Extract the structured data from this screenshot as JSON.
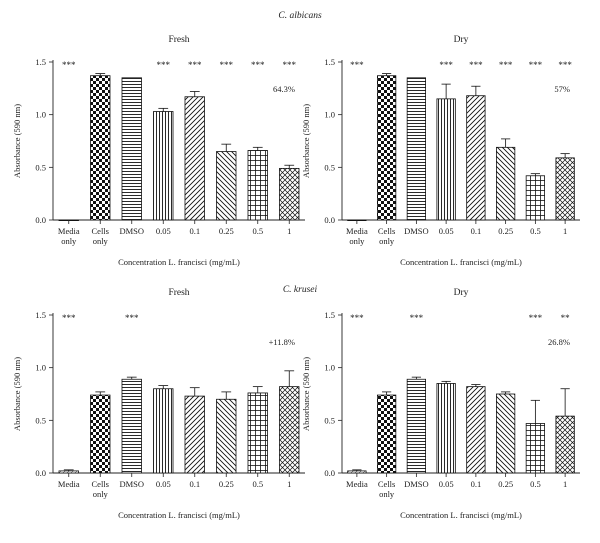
{
  "figure": {
    "section_titles": [
      "C. albicans",
      "C. krusei"
    ]
  },
  "chart_data": [
    {
      "type": "bar",
      "organism": "C. albicans",
      "title": "Fresh",
      "ylabel": "Absorbance (590 nm)",
      "xlabel": "Concentration L. francisci (mg/mL)",
      "categories": [
        "Media only",
        "Cells only",
        "DMSO",
        "0.05",
        "0.1",
        "0.25",
        "0.5",
        "1"
      ],
      "values": [
        0.0,
        1.37,
        1.35,
        1.03,
        1.17,
        0.65,
        0.66,
        0.49
      ],
      "errors": [
        0.0,
        0.02,
        0.0,
        0.03,
        0.05,
        0.07,
        0.03,
        0.03
      ],
      "significance": [
        "***",
        "",
        "",
        "***",
        "***",
        "***",
        "***",
        "***"
      ],
      "annotation": "64.3%",
      "ylim": [
        0,
        1.5
      ],
      "yticks": [
        "0.0",
        "0.5",
        "1.0",
        "1.5"
      ],
      "patterns": [
        "hatch-light",
        "checker",
        "hlines",
        "vlines",
        "diag-right",
        "diag-left",
        "grid",
        "crosshatch"
      ]
    },
    {
      "type": "bar",
      "organism": "C. albicans",
      "title": "Dry",
      "ylabel": "Absorbance (590 nm)",
      "xlabel": "Concentration L. francisci (mg/mL)",
      "categories": [
        "Media only",
        "Cells only",
        "DMSO",
        "0.05",
        "0.1",
        "0.25",
        "0.5",
        "1"
      ],
      "values": [
        0.0,
        1.37,
        1.35,
        1.15,
        1.18,
        0.69,
        0.42,
        0.59
      ],
      "errors": [
        0.0,
        0.02,
        0.0,
        0.14,
        0.09,
        0.08,
        0.02,
        0.04
      ],
      "significance": [
        "***",
        "",
        "",
        "***",
        "***",
        "***",
        "***",
        "***"
      ],
      "annotation": "57%",
      "ylim": [
        0,
        1.5
      ],
      "yticks": [
        "0.0",
        "0.5",
        "1.0",
        "1.5"
      ],
      "patterns": [
        "hatch-light",
        "checker",
        "hlines",
        "vlines",
        "diag-right",
        "diag-left",
        "grid",
        "crosshatch"
      ]
    },
    {
      "type": "bar",
      "organism": "C. krusei",
      "title": "Fresh",
      "ylabel": "Absorbance (590 nm)",
      "xlabel": "Concentration L. francisci (mg/mL)",
      "categories": [
        "Media",
        "Cells only",
        "DMSO",
        "0.05",
        "0.1",
        "0.25",
        "0.5",
        "1"
      ],
      "values": [
        0.02,
        0.74,
        0.89,
        0.8,
        0.73,
        0.7,
        0.76,
        0.82
      ],
      "errors": [
        0.01,
        0.03,
        0.02,
        0.03,
        0.08,
        0.07,
        0.06,
        0.15
      ],
      "significance": [
        "***",
        "",
        "***",
        "",
        "",
        "",
        "",
        ""
      ],
      "annotation": "+11.8%",
      "ylim": [
        0,
        1.5
      ],
      "yticks": [
        "0.0",
        "0.5",
        "1.0",
        "1.5"
      ],
      "patterns": [
        "hatch-light",
        "checker",
        "hlines",
        "vlines",
        "diag-right",
        "diag-left",
        "grid",
        "crosshatch"
      ]
    },
    {
      "type": "bar",
      "organism": "C. krusei",
      "title": "Dry",
      "ylabel": "Absorbance (590 nm)",
      "xlabel": "Concentration L. francisci (mg/mL)",
      "categories": [
        "Media",
        "Cells only",
        "DMSO",
        "0.05",
        "0.1",
        "0.25",
        "0.5",
        "1"
      ],
      "values": [
        0.02,
        0.74,
        0.89,
        0.85,
        0.82,
        0.75,
        0.47,
        0.54
      ],
      "errors": [
        0.01,
        0.03,
        0.02,
        0.02,
        0.02,
        0.02,
        0.22,
        0.26
      ],
      "significance": [
        "***",
        "",
        "***",
        "",
        "",
        "",
        "***",
        "**"
      ],
      "annotation": "26.8%",
      "ylim": [
        0,
        1.5
      ],
      "yticks": [
        "0.0",
        "0.5",
        "1.0",
        "1.5"
      ],
      "patterns": [
        "hatch-light",
        "checker",
        "hlines",
        "vlines",
        "diag-right",
        "diag-left",
        "grid",
        "crosshatch"
      ]
    }
  ]
}
